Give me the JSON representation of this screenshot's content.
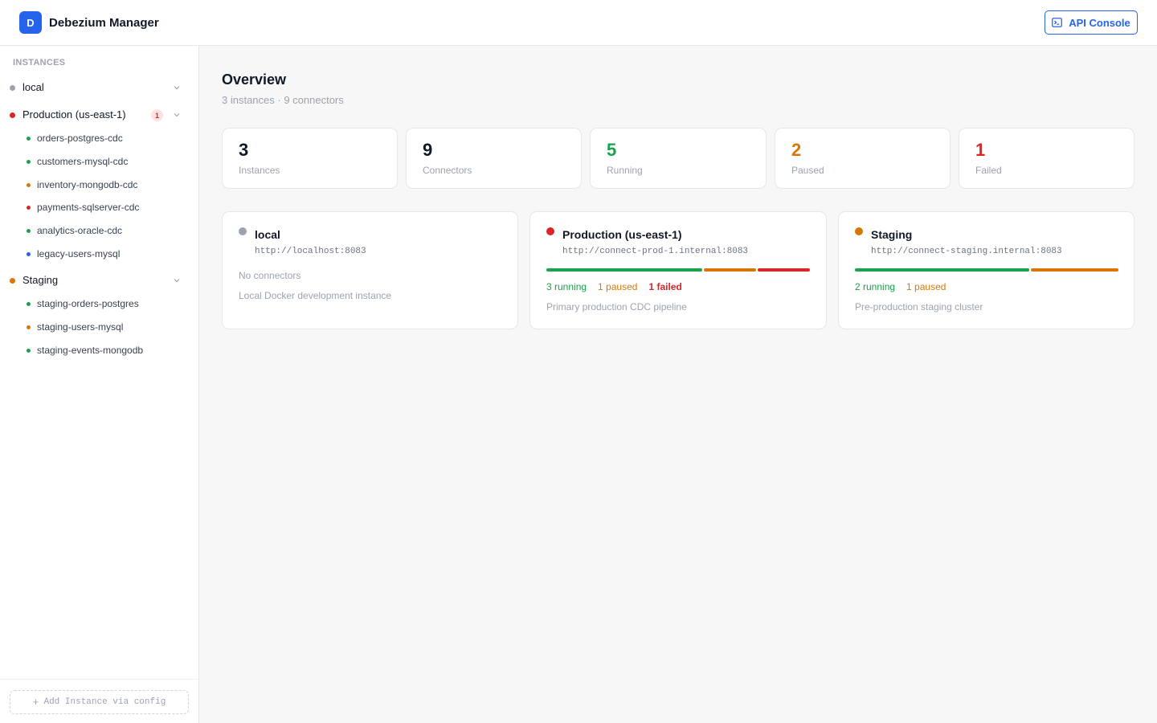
{
  "header": {
    "logo_letter": "D",
    "title": "Debezium Manager",
    "api_console_label": "API Console"
  },
  "sidebar": {
    "section_label": "INSTANCES",
    "instances": [
      {
        "name": "local",
        "status_color": "#9ca3af",
        "connectors": []
      },
      {
        "name": "Production (us-east-1)",
        "status_color": "#dc2626",
        "badge": "1",
        "connectors": [
          {
            "name": "orders-postgres-cdc",
            "status_color": "#16a34a"
          },
          {
            "name": "customers-mysql-cdc",
            "status_color": "#16a34a"
          },
          {
            "name": "inventory-mongodb-cdc",
            "status_color": "#d97706"
          },
          {
            "name": "payments-sqlserver-cdc",
            "status_color": "#dc2626"
          },
          {
            "name": "analytics-oracle-cdc",
            "status_color": "#16a34a"
          },
          {
            "name": "legacy-users-mysql",
            "status_color": "#2563eb"
          }
        ]
      },
      {
        "name": "Staging",
        "status_color": "#d97706",
        "connectors": [
          {
            "name": "staging-orders-postgres",
            "status_color": "#16a34a"
          },
          {
            "name": "staging-users-mysql",
            "status_color": "#d97706"
          },
          {
            "name": "staging-events-mongodb",
            "status_color": "#16a34a"
          }
        ]
      }
    ],
    "add_instance_label": "Add Instance via config"
  },
  "overview": {
    "title": "Overview",
    "subtitle": "3 instances · 9 connectors",
    "stats": [
      {
        "value": "3",
        "label": "Instances",
        "color": "#111827"
      },
      {
        "value": "9",
        "label": "Connectors",
        "color": "#111827"
      },
      {
        "value": "5",
        "label": "Running",
        "color": "#16a34a"
      },
      {
        "value": "2",
        "label": "Paused",
        "color": "#d97706"
      },
      {
        "value": "1",
        "label": "Failed",
        "color": "#dc2626"
      }
    ],
    "cards": [
      {
        "name": "local",
        "url": "http://localhost:8083",
        "status_color": "#9ca3af",
        "note": "No connectors",
        "description": "Local Docker development instance",
        "running": 0,
        "paused": 0,
        "failed": 0,
        "counts": []
      },
      {
        "name": "Production (us-east-1)",
        "url": "http://connect-prod-1.internal:8083",
        "status_color": "#dc2626",
        "description": "Primary production CDC pipeline",
        "running": 3,
        "paused": 1,
        "failed": 1,
        "counts": [
          {
            "text": "3 running",
            "color": "#16a34a"
          },
          {
            "text": "1 paused",
            "color": "#d97706"
          },
          {
            "text": "1 failed",
            "color": "#dc2626"
          }
        ]
      },
      {
        "name": "Staging",
        "url": "http://connect-staging.internal:8083",
        "status_color": "#d97706",
        "description": "Pre-production staging cluster",
        "running": 2,
        "paused": 1,
        "failed": 0,
        "counts": [
          {
            "text": "2 running",
            "color": "#16a34a"
          },
          {
            "text": "1 paused",
            "color": "#d97706"
          }
        ]
      }
    ]
  }
}
